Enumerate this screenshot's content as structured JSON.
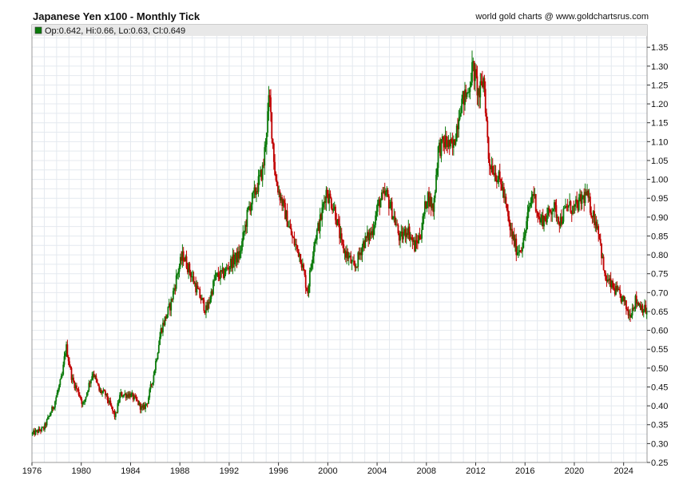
{
  "header": {
    "title": "Japanese Yen x100 - Monthly Tick",
    "credit": "world gold charts @ www.goldchartsrus.com"
  },
  "legend": {
    "text": "Op:0.642, Hi:0.66, Lo:0.63, Cl:0.649"
  },
  "colors": {
    "up": "#0a7a0a",
    "down": "#c00000",
    "grid": "#e4e9ef",
    "legend_bg": "#e8e8e8",
    "plot_bg": "#ffffff"
  },
  "chart_data": {
    "type": "ohlc",
    "title": "Japanese Yen x100 - Monthly Tick",
    "xlabel": "",
    "ylabel": "",
    "xlim": [
      1976,
      2025.9
    ],
    "ylim": [
      0.25,
      1.38
    ],
    "x_ticks": [
      "1976",
      "1980",
      "1984",
      "1988",
      "1992",
      "1996",
      "2000",
      "2004",
      "2008",
      "2012",
      "2016",
      "2020",
      "2024"
    ],
    "y_ticks": [
      "0.25",
      "0.30",
      "0.35",
      "0.40",
      "0.45",
      "0.50",
      "0.55",
      "0.60",
      "0.65",
      "0.70",
      "0.75",
      "0.80",
      "0.85",
      "0.90",
      "0.95",
      "1.00",
      "1.05",
      "1.10",
      "1.15",
      "1.20",
      "1.25",
      "1.30",
      "1.35"
    ],
    "last_bar": {
      "open": 0.642,
      "high": 0.66,
      "low": 0.63,
      "close": 0.649
    },
    "anchor_points": [
      [
        1976.0,
        0.325
      ],
      [
        1977.0,
        0.34
      ],
      [
        1977.8,
        0.4
      ],
      [
        1978.5,
        0.48
      ],
      [
        1978.8,
        0.56
      ],
      [
        1979.3,
        0.47
      ],
      [
        1979.9,
        0.43
      ],
      [
        1980.2,
        0.4
      ],
      [
        1980.6,
        0.45
      ],
      [
        1981.0,
        0.49
      ],
      [
        1981.5,
        0.44
      ],
      [
        1982.0,
        0.43
      ],
      [
        1982.4,
        0.4
      ],
      [
        1982.8,
        0.37
      ],
      [
        1983.2,
        0.43
      ],
      [
        1984.0,
        0.43
      ],
      [
        1984.6,
        0.41
      ],
      [
        1985.0,
        0.39
      ],
      [
        1985.4,
        0.41
      ],
      [
        1985.9,
        0.48
      ],
      [
        1986.5,
        0.6
      ],
      [
        1987.3,
        0.67
      ],
      [
        1987.9,
        0.76
      ],
      [
        1988.3,
        0.8
      ],
      [
        1988.8,
        0.76
      ],
      [
        1989.4,
        0.71
      ],
      [
        1990.2,
        0.65
      ],
      [
        1990.9,
        0.74
      ],
      [
        1991.6,
        0.75
      ],
      [
        1992.2,
        0.78
      ],
      [
        1992.9,
        0.8
      ],
      [
        1993.6,
        0.92
      ],
      [
        1994.2,
        0.97
      ],
      [
        1994.8,
        1.03
      ],
      [
        1995.3,
        1.22
      ],
      [
        1995.8,
        1.0
      ],
      [
        1996.5,
        0.92
      ],
      [
        1997.2,
        0.84
      ],
      [
        1997.8,
        0.8
      ],
      [
        1998.4,
        0.7
      ],
      [
        1998.9,
        0.83
      ],
      [
        1999.5,
        0.9
      ],
      [
        1999.9,
        0.97
      ],
      [
        2000.6,
        0.92
      ],
      [
        2001.2,
        0.82
      ],
      [
        2001.8,
        0.79
      ],
      [
        2002.2,
        0.76
      ],
      [
        2002.9,
        0.83
      ],
      [
        2003.6,
        0.86
      ],
      [
        2004.2,
        0.94
      ],
      [
        2004.8,
        0.96
      ],
      [
        2005.4,
        0.9
      ],
      [
        2005.9,
        0.84
      ],
      [
        2006.5,
        0.87
      ],
      [
        2007.1,
        0.82
      ],
      [
        2007.6,
        0.86
      ],
      [
        2008.1,
        0.96
      ],
      [
        2008.6,
        0.92
      ],
      [
        2009.0,
        1.08
      ],
      [
        2009.6,
        1.1
      ],
      [
        2010.2,
        1.08
      ],
      [
        2010.8,
        1.2
      ],
      [
        2011.4,
        1.23
      ],
      [
        2011.8,
        1.3
      ],
      [
        2012.3,
        1.22
      ],
      [
        2012.7,
        1.27
      ],
      [
        2013.1,
        1.05
      ],
      [
        2013.6,
        1.02
      ],
      [
        2014.2,
        0.98
      ],
      [
        2014.8,
        0.87
      ],
      [
        2015.4,
        0.81
      ],
      [
        2015.9,
        0.83
      ],
      [
        2016.3,
        0.91
      ],
      [
        2016.7,
        0.97
      ],
      [
        2017.2,
        0.89
      ],
      [
        2017.8,
        0.9
      ],
      [
        2018.3,
        0.93
      ],
      [
        2018.9,
        0.89
      ],
      [
        2019.5,
        0.93
      ],
      [
        2020.0,
        0.92
      ],
      [
        2020.5,
        0.94
      ],
      [
        2021.0,
        0.96
      ],
      [
        2021.5,
        0.91
      ],
      [
        2022.0,
        0.87
      ],
      [
        2022.5,
        0.74
      ],
      [
        2023.0,
        0.72
      ],
      [
        2023.5,
        0.7
      ],
      [
        2024.0,
        0.68
      ],
      [
        2024.5,
        0.64
      ],
      [
        2025.0,
        0.68
      ],
      [
        2025.9,
        0.65
      ]
    ]
  }
}
